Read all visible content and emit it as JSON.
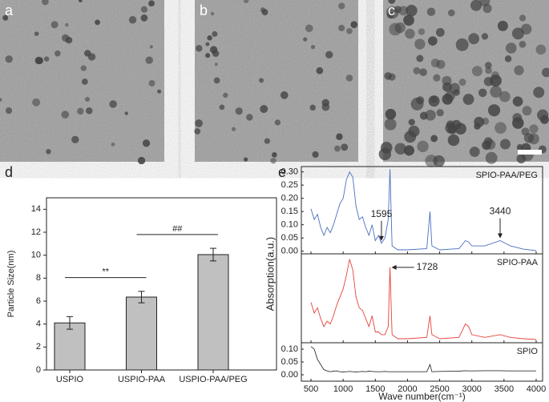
{
  "images": [
    {
      "label": "a"
    },
    {
      "label": "b"
    },
    {
      "label": "c"
    }
  ],
  "chart_data": [
    {
      "type": "bar",
      "panel_label": "d",
      "ylabel": "Particle Size(nm)",
      "categories": [
        "USPIO",
        "USPIO-PAA",
        "USPIO-PAA/PEG"
      ],
      "values": [
        4.1,
        6.35,
        10.05
      ],
      "errors": [
        0.55,
        0.5,
        0.55
      ],
      "color": "#c0c0c0",
      "ylim": [
        0,
        15
      ],
      "yticks": [
        0,
        2,
        4,
        6,
        8,
        10,
        12,
        14
      ],
      "annotations": [
        "**",
        "##"
      ]
    },
    {
      "type": "line",
      "panel_label": "e",
      "series": [
        {
          "name": "SPIO-PAA/PEG",
          "color": "#4a6fc0",
          "values": [
            0.16,
            0.12,
            0.14,
            0.09,
            0.06,
            0.09,
            0.07,
            0.1,
            0.14,
            0.18,
            0.2,
            0.27,
            0.3,
            0.28,
            0.17,
            0.12,
            0.13,
            0.09,
            0.06,
            0.1,
            0.04,
            0.06,
            0.03,
            0.05,
            0.12,
            0.31,
            0.02,
            0.005,
            0.005,
            0.01,
            0.15,
            0.02,
            0.005,
            0.01,
            0.04,
            0.035,
            0.02,
            0.02,
            0.04,
            0.02,
            0.008,
            0.002
          ]
        }
      ],
      "x": [
        500,
        550,
        600,
        650,
        700,
        750,
        800,
        850,
        900,
        950,
        1000,
        1050,
        1100,
        1150,
        1200,
        1250,
        1300,
        1350,
        1400,
        1450,
        1500,
        1550,
        1595,
        1650,
        1700,
        1728,
        1760,
        1850,
        2000,
        2300,
        2350,
        2380,
        2500,
        2800,
        2900,
        2950,
        3000,
        3200,
        3440,
        3600,
        3800,
        4000
      ],
      "xlim": [
        350,
        4100
      ],
      "ylim": [
        -0.01,
        0.32
      ],
      "yticks": [
        {
          "value": 0,
          "label": "0.00"
        },
        {
          "value": 0.05,
          "label": "0.05"
        },
        {
          "value": 0.1,
          "label": "0.10"
        },
        {
          "value": 0.15,
          "label": "0.15"
        },
        {
          "value": 0.2,
          "label": "0.20"
        },
        {
          "value": 0.25,
          "label": "0.25"
        },
        {
          "value": 0.3,
          "label": "0.30"
        }
      ],
      "annotations": [
        {
          "text": "1595",
          "x": 1595
        },
        {
          "text": "3440",
          "x": 3440
        }
      ]
    },
    {
      "type": "line",
      "ylabel": "Absorption(a.u.)",
      "series": [
        {
          "name": "SPIO-PAA",
          "color": "#e5423a",
          "values": [
            0.14,
            0.1,
            0.12,
            0.08,
            0.05,
            0.07,
            0.06,
            0.09,
            0.13,
            0.16,
            0.19,
            0.24,
            0.3,
            0.26,
            0.16,
            0.12,
            0.11,
            0.08,
            0.05,
            0.09,
            0.03,
            0.03,
            0.02,
            0.02,
            0.05,
            0.27,
            0.02,
            0.005,
            0.005,
            0.01,
            0.09,
            0.02,
            0.005,
            0.01,
            0.06,
            0.05,
            0.02,
            0.01,
            0.02,
            0.01,
            0.005,
            0.002
          ]
        }
      ],
      "x": [
        500,
        550,
        600,
        650,
        700,
        750,
        800,
        850,
        900,
        950,
        1000,
        1050,
        1100,
        1150,
        1200,
        1250,
        1300,
        1350,
        1400,
        1450,
        1500,
        1550,
        1595,
        1650,
        1700,
        1728,
        1760,
        1850,
        2000,
        2300,
        2350,
        2380,
        2500,
        2800,
        2900,
        2950,
        3000,
        3200,
        3440,
        3600,
        3800,
        4000
      ],
      "xlim": [
        350,
        4100
      ],
      "ylim": [
        -0.01,
        0.32
      ],
      "annotations": [
        {
          "text": "1728",
          "x": 1728
        }
      ]
    },
    {
      "type": "line",
      "xlabel": "Wave number(cm⁻¹)",
      "series": [
        {
          "name": "SPIO",
          "color": "#333333",
          "values": [
            0.11,
            0.1,
            0.06,
            0.04,
            0.02,
            0.015,
            0.012,
            0.014,
            0.015,
            0.012,
            0.011,
            0.012,
            0.013,
            0.012,
            0.011,
            0.012,
            0.013,
            0.012,
            0.014,
            0.013,
            0.012,
            0.012,
            0.012,
            0.013,
            0.012,
            0.012,
            0.012,
            0.012,
            0.012,
            0.012,
            0.04,
            0.012,
            0.013,
            0.014,
            0.016,
            0.015,
            0.015,
            0.016,
            0.016,
            0.015,
            0.015,
            0.015
          ]
        }
      ],
      "x": [
        500,
        550,
        600,
        650,
        700,
        750,
        800,
        850,
        900,
        950,
        1000,
        1050,
        1100,
        1150,
        1200,
        1250,
        1300,
        1350,
        1400,
        1450,
        1500,
        1550,
        1595,
        1650,
        1700,
        1728,
        1760,
        1850,
        2000,
        2300,
        2350,
        2380,
        2500,
        2800,
        2900,
        2950,
        3000,
        3200,
        3440,
        3600,
        3800,
        4000
      ],
      "xlim": [
        350,
        4100
      ],
      "xticks": [
        500,
        1000,
        1500,
        2000,
        2500,
        3000,
        3500,
        4000
      ],
      "ylim": [
        -0.025,
        0.125
      ],
      "yticks": [
        {
          "value": 0,
          "label": "0.00"
        },
        {
          "value": 0.05,
          "label": "0.05"
        },
        {
          "value": 0.1,
          "label": "0.10"
        }
      ]
    }
  ]
}
